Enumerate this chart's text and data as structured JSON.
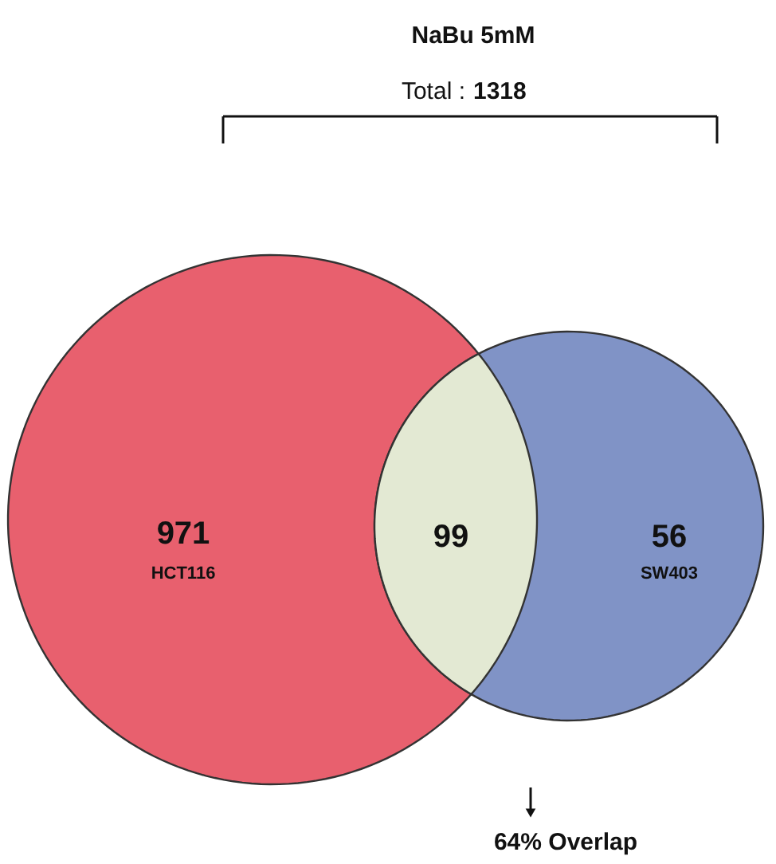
{
  "chart_data": {
    "type": "other",
    "title": "NaBu 5mM",
    "subtitle": "Total : 1318",
    "categories": [
      "HCT116",
      null,
      "SW403"
    ],
    "values": [
      971,
      99,
      56
    ],
    "colors": [
      "#e8606e",
      "#e3e9d3",
      "#8093c6"
    ],
    "data_labels": true,
    "annotations": [
      "64% Overlap"
    ]
  }
}
